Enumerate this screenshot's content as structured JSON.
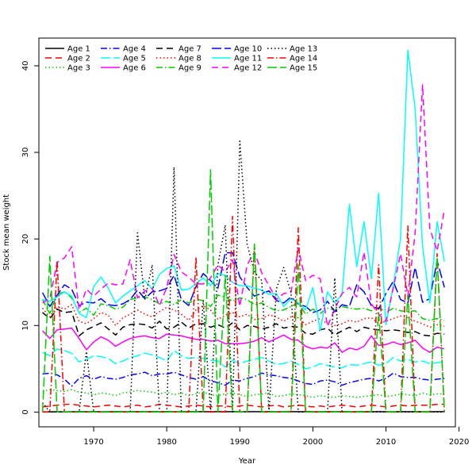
{
  "chart_data": {
    "type": "line",
    "title": "",
    "xlabel": "Year",
    "ylabel": "Stock mean weight",
    "xlim": [
      1962.5,
      2019.5
    ],
    "ylim": [
      -1.7,
      43.2
    ],
    "x_ticks": [
      1970,
      1980,
      1990,
      2000,
      2010,
      2020
    ],
    "y_ticks": [
      0,
      10,
      20,
      30,
      40
    ],
    "grid": false,
    "legend_position": "top-left",
    "x": [
      1963,
      1964,
      1965,
      1966,
      1967,
      1968,
      1969,
      1970,
      1971,
      1972,
      1973,
      1974,
      1975,
      1976,
      1977,
      1978,
      1979,
      1980,
      1981,
      1982,
      1983,
      1984,
      1985,
      1986,
      1987,
      1988,
      1989,
      1990,
      1991,
      1992,
      1993,
      1994,
      1995,
      1996,
      1997,
      1998,
      1999,
      2000,
      2001,
      2002,
      2003,
      2004,
      2005,
      2006,
      2007,
      2008,
      2009,
      2010,
      2011,
      2012,
      2013,
      2014,
      2015,
      2016,
      2017,
      2018
    ],
    "series": [
      {
        "name": "Age 1",
        "color": "#000000",
        "dash": "solid",
        "values": [
          0.03,
          0.03,
          0.04,
          0.03,
          0.04,
          0.05,
          0.04,
          0.05,
          0.04,
          0.04,
          0.05,
          0.04,
          0.04,
          0.05,
          0.04,
          0.05,
          0.04,
          0.05,
          0.04,
          0.04,
          0.05,
          0.04,
          0.05,
          0.04,
          0.05,
          0.04,
          0.05,
          0.04,
          0.04,
          0.05,
          0.04,
          0.05,
          0.04,
          0.04,
          0.05,
          0.04,
          0.05,
          0.04,
          0.04,
          0.05,
          0.04,
          0.05,
          0.04,
          0.04,
          0.05,
          0.04,
          0.05,
          0.04,
          0.04,
          0.05,
          0.04,
          0.05,
          0.04,
          0.04,
          0.05,
          0.05
        ]
      },
      {
        "name": "Age 2",
        "color": "#ff0000",
        "dash": "8,5",
        "values": [
          0.6,
          0.7,
          0.8,
          0.9,
          0.9,
          0.8,
          0.7,
          0.6,
          0.7,
          0.8,
          0.7,
          0.6,
          0.7,
          0.8,
          0.6,
          0.7,
          0.9,
          0.8,
          0.7,
          0.6,
          0.7,
          0.8,
          0.7,
          0.6,
          0.7,
          0.7,
          0.6,
          0.7,
          0.8,
          0.7,
          0.6,
          0.7,
          0.8,
          0.6,
          0.7,
          0.8,
          0.7,
          0.6,
          0.7,
          0.6,
          0.7,
          0.8,
          0.7,
          0.6,
          0.7,
          0.8,
          0.7,
          0.6,
          0.7,
          0.8,
          0.7,
          0.8,
          0.8,
          0.8,
          0.9,
          0.9
        ]
      },
      {
        "name": "Age 3",
        "color": "#00cd00",
        "dash": "1.5,3",
        "values": [
          2.4,
          2.6,
          2.5,
          2.4,
          2.6,
          2.3,
          2.2,
          2.0,
          2.2,
          2.1,
          1.9,
          2.2,
          2.3,
          2.5,
          2.4,
          2.3,
          2.1,
          2.3,
          2.0,
          2.2,
          1.9,
          2.1,
          2.3,
          2.0,
          1.9,
          2.1,
          2.2,
          2.0,
          1.8,
          2.0,
          2.1,
          2.2,
          1.8,
          1.9,
          2.1,
          2.0,
          1.9,
          1.7,
          1.9,
          1.8,
          1.7,
          1.9,
          1.8,
          1.7,
          1.8,
          1.9,
          2.0,
          1.8,
          1.9,
          2.1,
          2.0,
          1.9,
          2.2,
          2.0,
          2.1,
          2.1
        ]
      },
      {
        "name": "Age 4",
        "color": "#0000ff",
        "dash": "8,3,1.5,3",
        "values": [
          4.4,
          4.5,
          4.3,
          3.8,
          3.0,
          3.9,
          4.2,
          3.8,
          4.1,
          3.9,
          3.8,
          4.0,
          4.3,
          4.4,
          4.6,
          4.2,
          4.4,
          4.4,
          4.6,
          4.3,
          4.0,
          3.8,
          4.1,
          3.6,
          3.4,
          3.1,
          3.7,
          3.6,
          3.9,
          4.1,
          4.5,
          4.3,
          4.2,
          4.0,
          3.9,
          3.6,
          3.3,
          3.2,
          3.6,
          3.7,
          3.5,
          3.1,
          3.4,
          3.6,
          3.8,
          3.9,
          3.6,
          3.9,
          4.5,
          4.1,
          4.0,
          4.0,
          3.8,
          3.7,
          3.8,
          3.9
        ]
      },
      {
        "name": "Age 5",
        "color": "#00ffff",
        "dash": "12,4",
        "values": [
          6.9,
          6.5,
          7.3,
          7.1,
          6.8,
          5.8,
          6.1,
          6.5,
          6.4,
          6.2,
          5.6,
          5.9,
          6.3,
          6.5,
          6.8,
          6.6,
          6.3,
          5.9,
          7.1,
          6.5,
          6.2,
          6.3,
          6.2,
          6.0,
          5.9,
          5.2,
          6.0,
          5.6,
          5.9,
          6.1,
          6.3,
          5.9,
          5.5,
          5.6,
          5.9,
          5.5,
          5.0,
          5.2,
          5.6,
          5.4,
          5.2,
          5.1,
          5.5,
          5.4,
          5.6,
          5.8,
          5.4,
          5.6,
          6.3,
          5.9,
          6.1,
          5.8,
          5.9,
          5.6,
          5.7,
          5.8
        ]
      },
      {
        "name": "Age 6",
        "color": "#ff00ff",
        "dash": "solid",
        "values": [
          9.4,
          8.5,
          9.5,
          9.6,
          9.7,
          8.5,
          7.2,
          8.1,
          8.7,
          8.3,
          7.6,
          8.1,
          8.5,
          8.7,
          8.8,
          8.6,
          8.5,
          9.0,
          8.9,
          8.8,
          8.6,
          8.4,
          8.4,
          8.2,
          8.3,
          7.9,
          7.9,
          7.9,
          8.0,
          8.2,
          8.6,
          8.1,
          8.5,
          8.9,
          8.4,
          8.3,
          7.6,
          7.3,
          7.5,
          7.4,
          8.0,
          6.9,
          7.4,
          7.2,
          7.6,
          8.8,
          7.7,
          7.8,
          8.1,
          7.8,
          8.0,
          8.3,
          7.4,
          6.9,
          7.5,
          7.3
        ]
      },
      {
        "name": "Age 7",
        "color": "#000000",
        "dash": "8,5",
        "values": [
          11.5,
          10.8,
          11.9,
          11.5,
          11.6,
          8.8,
          9.5,
          9.9,
          10.3,
          9.6,
          8.9,
          9.8,
          10.1,
          10.2,
          10.1,
          9.7,
          10.5,
          9.6,
          9.8,
          10.4,
          9.7,
          10.2,
          10.2,
          9.8,
          10.1,
          9.7,
          10.3,
          9.5,
          10.0,
          9.9,
          9.6,
          9.8,
          10.2,
          9.7,
          9.9,
          9.8,
          9.1,
          9.0,
          9.5,
          9.7,
          8.9,
          9.4,
          9.8,
          9.3,
          9.8,
          9.6,
          9.5,
          9.4,
          9.5,
          9.4,
          9.2,
          9.3,
          8.9,
          8.8,
          9.1,
          9.0
        ]
      },
      {
        "name": "Age 8",
        "color": "#ff0000",
        "dash": "1.5,3",
        "values": [
          12.0,
          11.0,
          12.2,
          11.9,
          12.4,
          10.5,
          10.2,
          10.8,
          11.5,
          11.2,
          10.0,
          10.9,
          11.3,
          11.8,
          11.3,
          11.0,
          11.6,
          12.1,
          11.8,
          11.3,
          10.6,
          11.8,
          12.3,
          11.8,
          10.7,
          11.2,
          11.5,
          11.0,
          11.3,
          10.7,
          10.8,
          11.2,
          11.0,
          10.5,
          11.0,
          10.9,
          10.1,
          10.5,
          10.8,
          10.2,
          10.0,
          10.2,
          10.6,
          10.4,
          10.8,
          10.9,
          10.2,
          10.5,
          10.8,
          11.1,
          10.9,
          10.5,
          10.2,
          9.8,
          10.1,
          9.9
        ]
      },
      {
        "name": "Age 9",
        "color": "#00cd00",
        "dash": "8,3,1.5,3",
        "values": [
          13.0,
          11.4,
          13.6,
          13.9,
          13.2,
          11.5,
          12.0,
          11.2,
          12.5,
          12.3,
          11.9,
          12.1,
          13.0,
          13.2,
          13.3,
          13.0,
          12.5,
          12.8,
          12.4,
          13.0,
          12.6,
          13.0,
          12.9,
          12.2,
          13.5,
          13.3,
          12.8,
          13.2,
          13.0,
          12.4,
          12.6,
          12.1,
          11.7,
          11.8,
          12.2,
          12.6,
          11.3,
          11.9,
          11.4,
          12.0,
          11.8,
          12.2,
          12.0,
          11.9,
          12.0,
          11.7,
          12.1,
          11.5,
          12.0,
          11.7,
          11.6,
          11.7,
          10.8,
          10.6,
          10.8,
          10.6
        ]
      },
      {
        "name": "Age 10",
        "color": "#0000ff",
        "dash": "12,4",
        "values": [
          13.8,
          12.2,
          13.5,
          14.7,
          14.2,
          12.3,
          12.7,
          12.6,
          13.1,
          12.4,
          12.3,
          12.5,
          13.0,
          14.1,
          13.1,
          13.9,
          14.0,
          14.3,
          15.8,
          13.0,
          12.3,
          14.5,
          16.0,
          15.2,
          14.3,
          18.4,
          18.4,
          15.6,
          14.4,
          13.4,
          13.7,
          14.0,
          12.9,
          12.6,
          13.3,
          12.5,
          12.2,
          11.5,
          11.8,
          12.8,
          11.6,
          12.4,
          12.2,
          14.7,
          13.9,
          12.3,
          11.9,
          13.7,
          15.1,
          13.0,
          12.6,
          16.7,
          12.7,
          13.1,
          17.5,
          14.4
        ]
      },
      {
        "name": "Age 11",
        "color": "#00ffff",
        "dash": "solid",
        "values": [
          13.0,
          12.8,
          13.3,
          13.9,
          13.4,
          11.4,
          10.9,
          14.5,
          15.6,
          14.3,
          12.6,
          13.4,
          14.0,
          14.6,
          15.2,
          14.2,
          15.9,
          16.6,
          16.9,
          14.1,
          14.2,
          14.8,
          15.5,
          14.6,
          16.0,
          15.8,
          15.0,
          14.6,
          14.6,
          14.3,
          14.1,
          13.6,
          13.7,
          12.2,
          13.1,
          12.6,
          11.8,
          14.4,
          9.4,
          13.9,
          12.6,
          13.6,
          24.0,
          16.8,
          22.0,
          15.4,
          25.3,
          10.1,
          14.6,
          20.1,
          41.8,
          35.0,
          19.2,
          12.6,
          22.0,
          17.4
        ]
      },
      {
        "name": "Age 12",
        "color": "#ff00ff",
        "dash": "8,5",
        "values": [
          12.6,
          13.1,
          17.3,
          17.8,
          19.1,
          11.8,
          14.2,
          13.4,
          14.2,
          14.9,
          14.7,
          14.8,
          17.6,
          13.2,
          14.0,
          14.3,
          12.3,
          14.4,
          18.2,
          16.2,
          15.6,
          14.8,
          14.8,
          15.5,
          17.0,
          16.2,
          17.6,
          12.2,
          17.0,
          18.5,
          16.1,
          14.6,
          13.0,
          13.7,
          13.8,
          18.9,
          15.2,
          15.8,
          15.4,
          9.9,
          11.9,
          13.7,
          14.4,
          13.3,
          18.5,
          12.5,
          11.3,
          10.5,
          14.3,
          18.3,
          13.4,
          20.7,
          37.8,
          21.2,
          18.6,
          23.4
        ]
      },
      {
        "name": "Age 13",
        "color": "#000000",
        "dash": "1.5,3",
        "values": [
          1.1,
          0.0,
          0.0,
          0.0,
          0.0,
          0.0,
          7.0,
          0.0,
          0.0,
          0.0,
          0.0,
          0.0,
          0.0,
          20.7,
          13.0,
          17.0,
          0.0,
          0.0,
          28.3,
          0.0,
          0.0,
          0.0,
          12.9,
          0.0,
          17.0,
          21.6,
          0.0,
          31.3,
          19.4,
          16.2,
          15.2,
          0.0,
          14.2,
          16.7,
          13.8,
          0.0,
          0.0,
          0.0,
          0.0,
          0.0,
          15.5,
          0.0,
          0.0,
          0.0,
          0.0,
          0.0,
          0.0,
          0.0,
          0.0,
          0.0,
          0.0,
          0.0,
          0.0,
          0.0,
          0.0,
          0.0
        ]
      },
      {
        "name": "Age 14",
        "color": "#ff0000",
        "dash": "8,3,1.5,3",
        "values": [
          0.0,
          0.0,
          17.5,
          0.0,
          0.0,
          0.0,
          0.0,
          0.0,
          0.0,
          0.0,
          0.0,
          0.0,
          0.0,
          0.0,
          0.0,
          0.0,
          0.0,
          0.0,
          0.0,
          0.0,
          0.0,
          17.9,
          0.0,
          0.0,
          0.0,
          0.0,
          22.6,
          0.0,
          0.0,
          19.3,
          0.0,
          0.0,
          0.0,
          0.0,
          0.0,
          21.3,
          0.0,
          0.0,
          0.0,
          0.0,
          0.0,
          0.0,
          0.0,
          0.0,
          0.0,
          0.0,
          17.0,
          0.0,
          0.0,
          0.0,
          21.5,
          0.0,
          0.0,
          0.0,
          18.3,
          0.0
        ]
      },
      {
        "name": "Age 15",
        "color": "#00cd00",
        "dash": "12,4",
        "values": [
          0.0,
          18.0,
          0.0,
          0.0,
          0.0,
          0.0,
          0.0,
          0.0,
          0.0,
          0.0,
          0.0,
          0.0,
          0.0,
          0.0,
          0.0,
          0.0,
          0.0,
          0.0,
          0.0,
          0.0,
          0.0,
          0.0,
          0.0,
          28.0,
          0.0,
          15.8,
          0.0,
          0.0,
          0.0,
          19.4,
          0.0,
          0.0,
          0.0,
          0.0,
          0.0,
          17.0,
          0.0,
          0.0,
          0.0,
          0.0,
          0.0,
          0.0,
          0.0,
          0.0,
          0.0,
          0.0,
          11.5,
          0.0,
          0.0,
          0.0,
          13.5,
          0.0,
          0.0,
          0.0,
          17.9,
          0.0
        ]
      }
    ]
  }
}
